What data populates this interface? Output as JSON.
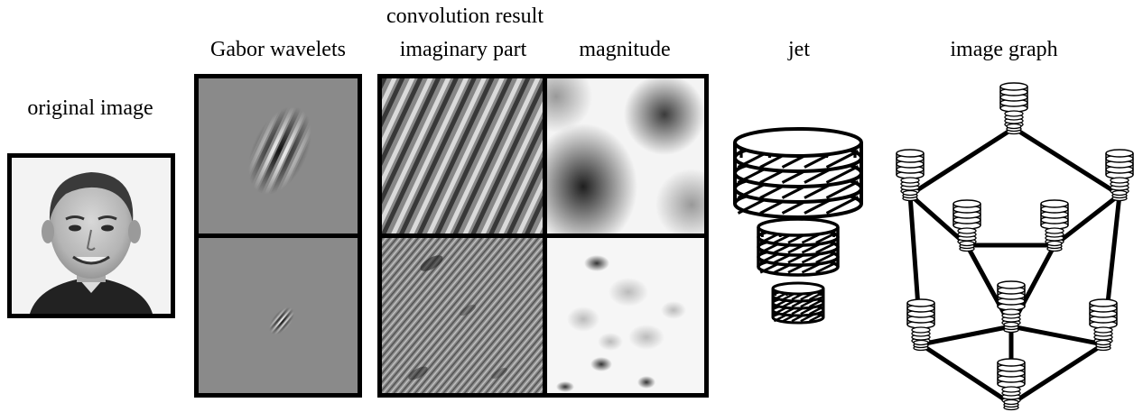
{
  "labels": {
    "original_image": "original image",
    "convolution_result": "convolution result",
    "gabor_wavelets": "Gabor wavelets",
    "imaginary_part": "imaginary part",
    "magnitude": "magnitude",
    "jet": "jet",
    "image_graph": "image graph"
  },
  "colors": {
    "line": "#000000",
    "gray": "#8a8a8a",
    "background": "#ffffff"
  },
  "icons": {
    "face": "face-photo",
    "wavelet": "gabor-wavelet",
    "jet": "jet-stack",
    "node": "graph-node-jet"
  }
}
